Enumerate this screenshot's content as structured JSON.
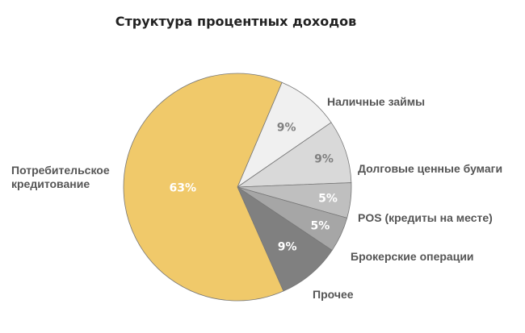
{
  "chart_data": {
    "type": "pie",
    "title": "Структура процентных доходов",
    "slices": [
      {
        "label": "Наличные займы",
        "percent": 9,
        "value_label": "9%",
        "color": "#f0f0f0",
        "pct_color": "#808080"
      },
      {
        "label": "Долговые ценные бумаги",
        "percent": 9,
        "value_label": "9%",
        "color": "#d9d9d9",
        "pct_color": "#808080"
      },
      {
        "label": "POS (кредиты на месте)",
        "percent": 5,
        "value_label": "5%",
        "color": "#bfbfbf",
        "pct_color": "#ffffff"
      },
      {
        "label": "Брокерские операции",
        "percent": 5,
        "value_label": "5%",
        "color": "#a6a6a6",
        "pct_color": "#ffffff"
      },
      {
        "label": "Прочее",
        "percent": 9,
        "value_label": "9%",
        "color": "#808080",
        "pct_color": "#ffffff"
      },
      {
        "label": "Потребительское кредитование",
        "label_lines": [
          "Потребительское",
          "кредитование"
        ],
        "percent": 63,
        "value_label": "63%",
        "color": "#f0c96a",
        "pct_color": "#ffffff"
      }
    ],
    "start_angle_deg": 23,
    "direction": "clockwise",
    "legend": "none"
  }
}
